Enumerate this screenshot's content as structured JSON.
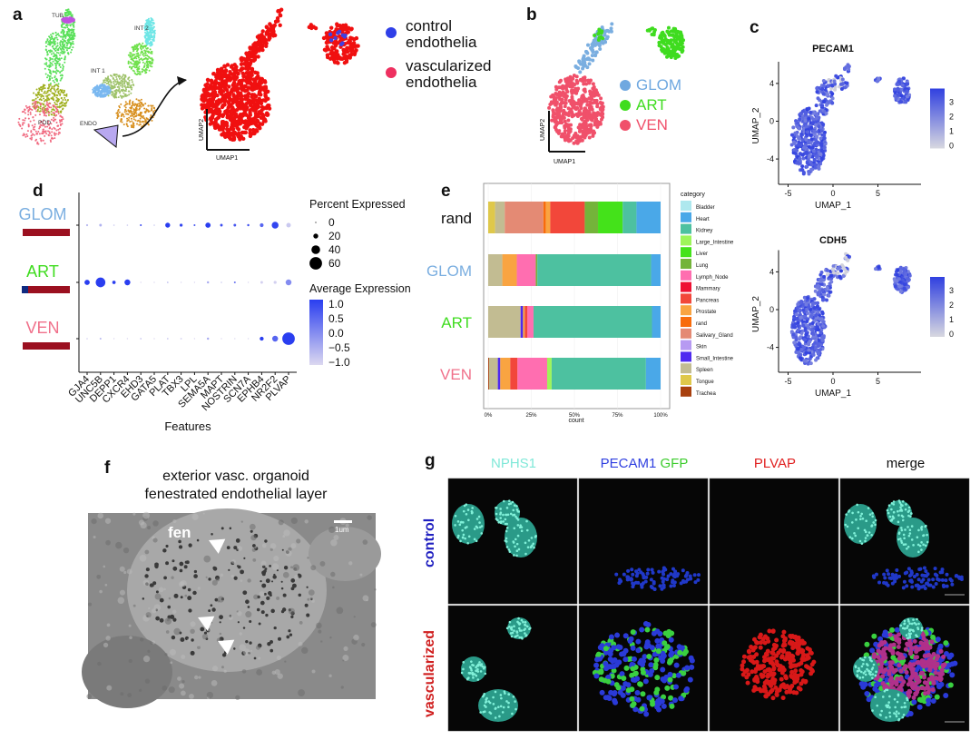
{
  "panels": {
    "a": {
      "label": "a",
      "clusters": [
        "TUB",
        "INT 2",
        "INT 1",
        "POD",
        "ENDO"
      ],
      "axis_x": "UMAP1",
      "axis_y": "UMAP2",
      "legend": [
        {
          "label": "control\nendothelia",
          "line1": "control",
          "line2": "endothelia",
          "color": "#2f3fe8"
        },
        {
          "label": "vascularized\nendothelia",
          "line1": "vascularized",
          "line2": "endothelia",
          "color": "#ee3060"
        }
      ]
    },
    "b": {
      "label": "b",
      "axis_x": "UMAP1",
      "axis_y": "UMAP2",
      "legend": [
        {
          "label": "GLOM",
          "color": "#6fa8e0"
        },
        {
          "label": "ART",
          "color": "#3fdc1f"
        },
        {
          "label": "VEN",
          "color": "#f0506a"
        }
      ]
    },
    "c": {
      "label": "c",
      "plots": [
        {
          "title": "PECAM1",
          "xlabel": "UMAP_1",
          "ylabel": "UMAP_2"
        },
        {
          "title": "CDH5",
          "xlabel": "UMAP_1",
          "ylabel": "UMAP_2"
        }
      ],
      "xticks": [
        "-5",
        "0",
        "5"
      ],
      "yticks": [
        "4",
        "0",
        "-4"
      ],
      "colorbar_ticks": [
        "3",
        "2",
        "1",
        "0"
      ]
    },
    "d": {
      "label": "d"
    },
    "e": {
      "label": "e"
    },
    "f": {
      "label": "f",
      "title_line1": "exterior vasc. organoid",
      "title_line2": "fenestrated endothelial layer",
      "annotation": "fen",
      "scale_bar": "1um"
    },
    "g": {
      "label": "g",
      "columns": [
        {
          "text": "NPHS1",
          "color": "#7fe8d8"
        },
        {
          "text": "PECAM1",
          "color": "#2f3fe0",
          "extra": "GFP",
          "extra_color": "#3ccc2c"
        },
        {
          "text": "PLVAP",
          "color": "#e02020"
        },
        {
          "text": "merge",
          "color": "#111111"
        }
      ],
      "rows": [
        {
          "text": "control",
          "color": "#2020c0"
        },
        {
          "text": "vascularized",
          "color": "#d02020"
        }
      ]
    }
  },
  "chart_data": [
    {
      "panel": "d",
      "type": "scatter",
      "subtype": "dot-plot",
      "xlabel": "Features",
      "rows": [
        {
          "label": "GLOM",
          "color": "#7aaee0"
        },
        {
          "label": "ART",
          "color": "#3fdc1f"
        },
        {
          "label": "VEN",
          "color": "#f0708a"
        }
      ],
      "genes": [
        "GJA4",
        "UNC5B",
        "DEPP1",
        "CXCR4",
        "EHD3",
        "GATA5",
        "PLAT",
        "TBX3",
        "LPL",
        "SEMA5A",
        "MAPT",
        "NOSTRIN",
        "SCN7A",
        "EPHB4",
        "NR2F2",
        "PLVAP"
      ],
      "percent_expressed": [
        [
          5,
          8,
          2,
          2,
          4,
          2,
          20,
          10,
          4,
          22,
          8,
          8,
          6,
          14,
          30,
          18
        ],
        [
          22,
          45,
          12,
          25,
          1,
          1,
          3,
          1,
          1,
          6,
          2,
          4,
          1,
          8,
          10,
          25
        ],
        [
          2,
          4,
          1,
          1,
          3,
          1,
          3,
          3,
          1,
          6,
          1,
          1,
          1,
          15,
          25,
          60
        ]
      ],
      "average_expression": [
        [
          -0.6,
          -0.5,
          -0.8,
          -0.8,
          0.8,
          -0.8,
          1,
          0.9,
          0.7,
          1,
          0.8,
          0.7,
          0.8,
          0.5,
          0.9,
          -0.8
        ],
        [
          1,
          1,
          1,
          1,
          -1,
          -1,
          -0.7,
          -1,
          -1,
          -0.4,
          -0.8,
          0.3,
          -1,
          -0.9,
          -0.9,
          0
        ],
        [
          -0.9,
          -0.6,
          -1,
          -1,
          -0.8,
          -1,
          -0.8,
          -0.9,
          -1,
          -0.4,
          -1,
          -1,
          -1,
          1,
          0.5,
          1
        ]
      ],
      "size_legend_title": "Percent Expressed",
      "size_legend": [
        "0",
        "20",
        "40",
        "60"
      ],
      "color_legend_title": "Average Expression",
      "color_legend": [
        "1.0",
        "0.5",
        "0.0",
        "−0.5",
        "−1.0"
      ],
      "color_low": "#dcd8f0",
      "color_high": "#2a3ef0"
    },
    {
      "panel": "e",
      "type": "bar",
      "orientation": "horizontal-stacked",
      "xlabel": "count",
      "xticks": [
        "0%",
        "25%",
        "50%",
        "75%",
        "100%"
      ],
      "categories": [
        "rand",
        "GLOM",
        "ART",
        "VEN"
      ],
      "category_colors": [
        "#111111",
        "#7aaee0",
        "#3fdc1f",
        "#f0708a"
      ],
      "legend_title": "category",
      "legend": [
        {
          "name": "Bladder",
          "color": "#aee8ee"
        },
        {
          "name": "Heart",
          "color": "#4aa8e8"
        },
        {
          "name": "Kidney",
          "color": "#4dc1a0"
        },
        {
          "name": "Large_Intestine",
          "color": "#9ef55a"
        },
        {
          "name": "Liver",
          "color": "#44e21a"
        },
        {
          "name": "Lung",
          "color": "#74b43a"
        },
        {
          "name": "Lymph_Node",
          "color": "#ff6eb0"
        },
        {
          "name": "Mammary",
          "color": "#ee1133"
        },
        {
          "name": "Pancreas",
          "color": "#f2473a"
        },
        {
          "name": "Prostate",
          "color": "#f9a441"
        },
        {
          "name": "rand",
          "color": "#f86c0c"
        },
        {
          "name": "Salivary_Gland",
          "color": "#e48a74"
        },
        {
          "name": "Skin",
          "color": "#b79af2"
        },
        {
          "name": "Small_Intestine",
          "color": "#4f2af0"
        },
        {
          "name": "Spleen",
          "color": "#c2bc92"
        },
        {
          "name": "Tongue",
          "color": "#dfc84a"
        },
        {
          "name": "Trachea",
          "color": "#a8400e"
        }
      ],
      "stacks": [
        [
          [
            "Tongue",
            4
          ],
          [
            "Spleen",
            5.6
          ],
          [
            "Salivary_Gland",
            22.4
          ],
          [
            "rand",
            1.5
          ],
          [
            "Prostate",
            2.5
          ],
          [
            "Pancreas",
            20
          ],
          [
            "Lung",
            7.7
          ],
          [
            "Liver",
            14.3
          ],
          [
            "Kidney",
            8
          ],
          [
            "Heart",
            14
          ]
        ],
        [
          [
            "Spleen",
            8.2
          ],
          [
            "Prostate",
            8.4
          ],
          [
            "Lymph_Node",
            11
          ],
          [
            "Lung",
            0.9
          ],
          [
            "Kidney",
            66
          ],
          [
            "Heart",
            5.5
          ]
        ],
        [
          [
            "Spleen",
            18.8
          ],
          [
            "Small_Intestine",
            1.4
          ],
          [
            "Prostate",
            1
          ],
          [
            "Pancreas",
            1.6
          ],
          [
            "Lymph_Node",
            3.5
          ],
          [
            "Kidney",
            68.7
          ],
          [
            "Heart",
            5
          ]
        ],
        [
          [
            "Trachea",
            0.5
          ],
          [
            "Spleen",
            5.1
          ],
          [
            "Small_Intestine",
            1.4
          ],
          [
            "Prostate",
            5.8
          ],
          [
            "Pancreas",
            4.2
          ],
          [
            "Lymph_Node",
            17.2
          ],
          [
            "Large_Intestine",
            2.6
          ],
          [
            "Kidney",
            54.7
          ],
          [
            "Heart",
            8.5
          ]
        ]
      ]
    },
    {
      "panel": "c",
      "type": "scatter",
      "xlim": [
        -5.5,
        9.5
      ],
      "ylim": [
        -6.5,
        6.5
      ],
      "colorbar_range": [
        0,
        3.5
      ],
      "color_low": "#d8d8e0",
      "color_high": "#3040e0"
    }
  ]
}
